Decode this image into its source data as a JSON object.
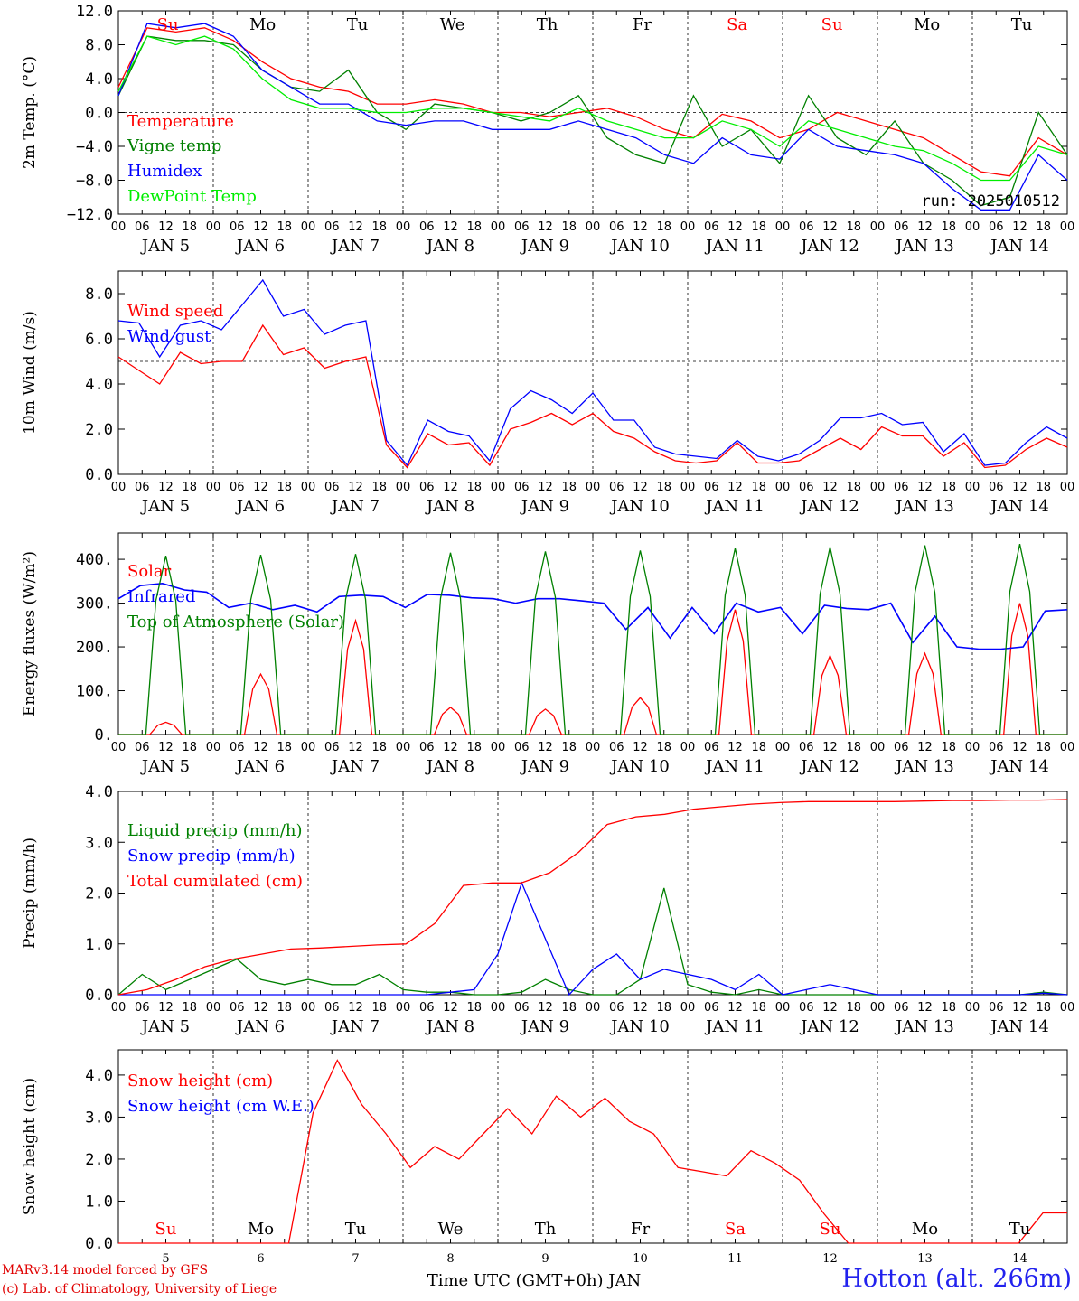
{
  "chart_data": [
    {
      "type": "line",
      "ylabel": "2m Temp. (°C)",
      "ylim": [
        -12,
        12
      ],
      "yticks": [
        "12.0",
        "8.0",
        "4.0",
        "0.0",
        "−4.0",
        "−8.0",
        "−12.0"
      ],
      "day_names": [
        "Su",
        "Mo",
        "Tu",
        "We",
        "Th",
        "Fr",
        "Sa",
        "Su",
        "Mo",
        "Tu"
      ],
      "run_label": "run: 2025010512",
      "reference_line": 0,
      "series": [
        {
          "name": "Temperature",
          "color": "#ff0000",
          "values": [
            3,
            10,
            9.5,
            10,
            8.5,
            6,
            4,
            3,
            2.5,
            1,
            1,
            1.5,
            1,
            0,
            0,
            -0.5,
            0,
            0.5,
            -0.5,
            -2,
            -3,
            -0.2,
            -1,
            -3,
            -2,
            0,
            -1,
            -2,
            -3,
            -5,
            -7,
            -7.5,
            -3,
            -5
          ]
        },
        {
          "name": "Vigne temp",
          "color": "#008000",
          "values": [
            2,
            9,
            8.5,
            8.5,
            8,
            5,
            3,
            2.5,
            5,
            0,
            -2,
            1,
            0.5,
            0,
            -1,
            0,
            2,
            -3,
            -5,
            -6,
            2,
            -4,
            -2,
            -6,
            2,
            -3,
            -5,
            -1,
            -6,
            -8,
            -11,
            -10,
            0,
            -5
          ]
        },
        {
          "name": "Humidex",
          "color": "#0000ff",
          "values": [
            2,
            10.5,
            10,
            10.5,
            9,
            5,
            3,
            1,
            1,
            -1,
            -1.5,
            -1,
            -1,
            -2,
            -2,
            -2,
            -1,
            -2,
            -3,
            -5,
            -6,
            -3,
            -5,
            -5.5,
            -2,
            -4,
            -4.5,
            -5,
            -6,
            -9,
            -11.5,
            -11.5,
            -5,
            -8
          ]
        },
        {
          "name": "DewPoint Temp",
          "color": "#00ee00",
          "values": [
            2.5,
            9,
            8,
            9,
            7.5,
            4,
            1.5,
            0.5,
            0.5,
            0,
            0,
            0.5,
            0.5,
            0,
            -0.5,
            -1,
            0.5,
            -1,
            -2,
            -3,
            -3,
            -1,
            -2,
            -4,
            -1,
            -2,
            -3,
            -4,
            -4.5,
            -6,
            -8,
            -8,
            -4,
            -5
          ]
        }
      ]
    },
    {
      "type": "line",
      "ylabel": "10m Wind (m/s)",
      "ylim": [
        0,
        9
      ],
      "yticks": [
        "8.0",
        "6.0",
        "4.0",
        "2.0",
        "0.0"
      ],
      "reference_line": 5,
      "series": [
        {
          "name": "Wind speed",
          "color": "#ff0000",
          "values": [
            5.2,
            4.6,
            4,
            5.4,
            4.9,
            5,
            5,
            6.6,
            5.3,
            5.6,
            4.7,
            5,
            5.2,
            1.3,
            0.3,
            1.8,
            1.3,
            1.4,
            0.4,
            2,
            2.3,
            2.7,
            2.2,
            2.7,
            1.9,
            1.6,
            1,
            0.6,
            0.5,
            0.6,
            1.4,
            0.5,
            0.5,
            0.6,
            1.1,
            1.6,
            1.1,
            2.1,
            1.7,
            1.7,
            0.8,
            1.4,
            0.3,
            0.4,
            1.1,
            1.6,
            1.2
          ]
        },
        {
          "name": "Wind gust",
          "color": "#0000ff",
          "values": [
            6.8,
            6.7,
            5.2,
            6.6,
            6.8,
            6.4,
            7.5,
            8.6,
            7,
            7.3,
            6.2,
            6.6,
            6.8,
            1.5,
            0.4,
            2.4,
            1.9,
            1.7,
            0.6,
            2.9,
            3.7,
            3.3,
            2.7,
            3.6,
            2.4,
            2.4,
            1.2,
            0.9,
            0.8,
            0.7,
            1.5,
            0.8,
            0.6,
            0.9,
            1.5,
            2.5,
            2.5,
            2.7,
            2.2,
            2.3,
            1,
            1.8,
            0.4,
            0.5,
            1.4,
            2.1,
            1.6
          ]
        }
      ]
    },
    {
      "type": "line",
      "ylabel": "Energy fluxes (W/m²)",
      "ylim": [
        0,
        460
      ],
      "yticks": [
        "400.",
        "300.",
        "200.",
        "100.",
        "0."
      ],
      "series": [
        {
          "name": "Solar",
          "color": "#ff0000",
          "peaks": [
            28,
            138,
            260,
            62,
            58,
            84,
            285,
            180,
            185,
            300
          ]
        },
        {
          "name": "Infrared",
          "color": "#0000ff",
          "values": [
            310,
            340,
            345,
            330,
            325,
            290,
            300,
            285,
            295,
            280,
            315,
            318,
            315,
            290,
            320,
            318,
            312,
            310,
            300,
            310,
            310,
            305,
            300,
            240,
            290,
            220,
            290,
            230,
            300,
            280,
            290,
            230,
            295,
            288,
            285,
            300,
            210,
            270,
            200,
            195,
            195,
            200,
            282,
            285
          ]
        },
        {
          "name": "Top of Atmosphere (Solar)",
          "color": "#008000",
          "peaks": [
            408,
            410,
            412,
            415,
            418,
            420,
            425,
            428,
            432,
            435
          ]
        }
      ]
    },
    {
      "type": "line",
      "ylabel": "Precip (mm/h)",
      "ylim": [
        0,
        4
      ],
      "yticks": [
        "4.0",
        "3.0",
        "2.0",
        "1.0",
        "0.0"
      ],
      "series": [
        {
          "name": "Liquid precip (mm/h)",
          "color": "#008000",
          "values": [
            0,
            0.4,
            0.1,
            0.3,
            0.5,
            0.7,
            0.3,
            0.2,
            0.3,
            0.2,
            0.2,
            0.4,
            0.1,
            0.05,
            0.05,
            0,
            0,
            0.05,
            0.3,
            0.1,
            0,
            0,
            0.3,
            2.1,
            0.2,
            0.05,
            0,
            0.1,
            0,
            0,
            0,
            0,
            0,
            0,
            0,
            0,
            0,
            0,
            0,
            0.05,
            0
          ]
        },
        {
          "name": "Snow precip (mm/h)",
          "color": "#0000ff",
          "values": [
            0,
            0,
            0,
            0,
            0,
            0,
            0,
            0,
            0,
            0,
            0,
            0,
            0,
            0,
            0.05,
            0.1,
            0.8,
            2.2,
            1.1,
            0,
            0.5,
            0.8,
            0.3,
            0.5,
            0.4,
            0.3,
            0.1,
            0.4,
            0,
            0.1,
            0.2,
            0.1,
            0,
            0,
            0,
            0,
            0,
            0,
            0,
            0.03,
            0
          ]
        },
        {
          "name": "Total cumulated (cm)",
          "color": "#ff0000",
          "values": [
            0,
            0.1,
            0.3,
            0.55,
            0.7,
            0.8,
            0.9,
            0.92,
            0.95,
            0.98,
            1.0,
            1.4,
            2.15,
            2.2,
            2.2,
            2.4,
            2.8,
            3.35,
            3.5,
            3.55,
            3.65,
            3.7,
            3.75,
            3.78,
            3.8,
            3.8,
            3.8,
            3.8,
            3.81,
            3.82,
            3.82,
            3.83,
            3.83,
            3.84
          ]
        }
      ]
    },
    {
      "type": "line",
      "ylabel": "Snow height (cm)",
      "ylim": [
        0,
        4.6
      ],
      "yticks": [
        "4.0",
        "3.0",
        "2.0",
        "1.0",
        "0.0"
      ],
      "xlabel": "Time UTC (GMT+0h) JAN",
      "day_numbers": [
        "5",
        "6",
        "7",
        "8",
        "9",
        "10",
        "11",
        "12",
        "13",
        "14"
      ],
      "series": [
        {
          "name": "Snow height (cm)",
          "color": "#ff0000",
          "values": [
            0,
            0,
            0,
            0,
            0,
            0,
            0,
            0,
            3.1,
            4.35,
            3.3,
            2.6,
            1.8,
            2.3,
            2.0,
            2.6,
            3.2,
            2.6,
            3.5,
            3.0,
            3.45,
            2.9,
            2.6,
            1.8,
            1.7,
            1.6,
            2.2,
            1.9,
            1.5,
            0.7,
            0,
            0,
            0,
            0,
            0,
            0,
            0,
            0,
            0.72,
            0.72
          ]
        },
        {
          "name": "Snow height (cm W.E.)",
          "color": "#0000ff",
          "values": []
        }
      ]
    }
  ],
  "axis": {
    "hour_labels": [
      "00",
      "06",
      "12",
      "18"
    ],
    "date_labels": [
      "JAN  5",
      "JAN  6",
      "JAN  7",
      "JAN  8",
      "JAN  9",
      "JAN 10",
      "JAN 11",
      "JAN 12",
      "JAN 13",
      "JAN 14"
    ],
    "end_hour_label": "00"
  },
  "footer": {
    "model_line": "MARv3.14 model forced by GFS",
    "copyright_line": "(c) Lab. of Climatology, University of Liege",
    "station": "Hotton (alt. 266m)"
  },
  "colors": {
    "weekend": "#ff0000",
    "weekday": "#000000"
  }
}
